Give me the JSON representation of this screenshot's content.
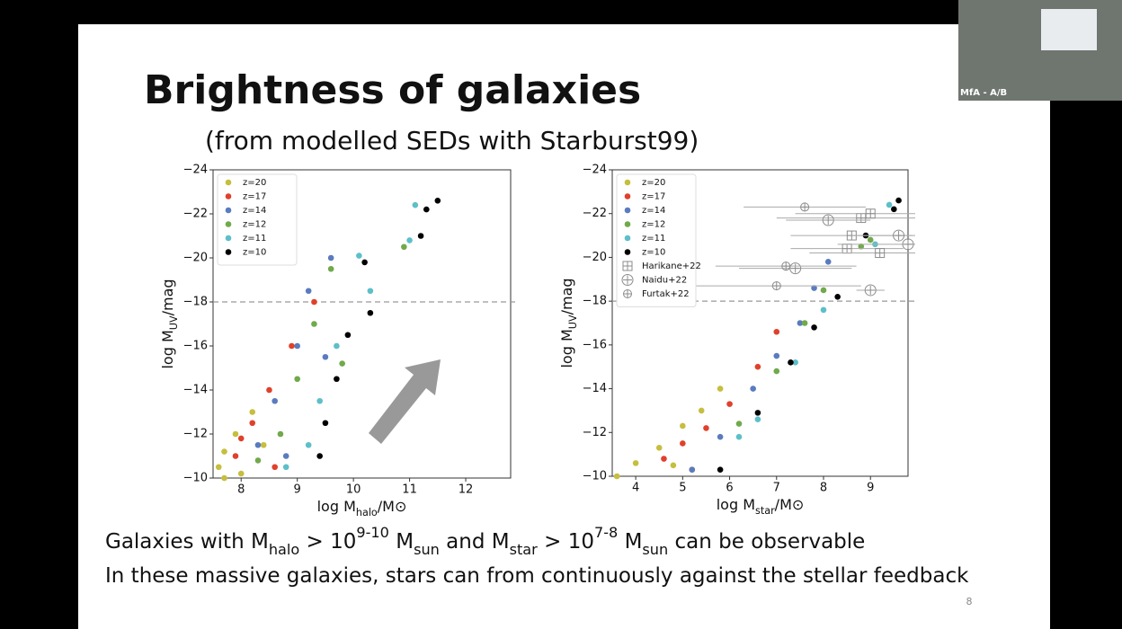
{
  "slide": {
    "title": "Brightness of galaxies",
    "subtitle": "(from modelled SEDs with Starburst99)",
    "body": [
      [
        {
          "text": "Galaxies with M"
        },
        {
          "text": "halo",
          "pos": "sub"
        },
        {
          "text": " > 10"
        },
        {
          "text": "9-10",
          "pos": "sup"
        },
        {
          "text": " M"
        },
        {
          "text": "sun",
          "pos": "sub"
        },
        {
          "text": " and M"
        },
        {
          "text": "star",
          "pos": "sub"
        },
        {
          "text": " > 10"
        },
        {
          "text": "7-8",
          "pos": "sup"
        },
        {
          "text": " M"
        },
        {
          "text": "sun",
          "pos": "sub"
        },
        {
          "text": " can be observable"
        }
      ],
      [
        {
          "text": "In these massive galaxies, stars can from continuously against the stellar feedback"
        }
      ]
    ],
    "page_number": "8"
  },
  "webcam": {
    "label": "MfA - A/B"
  },
  "chart_data": [
    {
      "type": "scatter",
      "xlabel": [
        {
          "text": "log M"
        },
        {
          "text": "halo",
          "pos": "sub"
        },
        {
          "text": "/M⊙"
        }
      ],
      "ylabel": [
        {
          "text": "log M"
        },
        {
          "text": "UV",
          "pos": "sub"
        },
        {
          "text": "/mag"
        }
      ],
      "xlim": [
        7.5,
        12.8
      ],
      "ylim": [
        -10,
        -24
      ],
      "xticks": [
        8,
        9,
        10,
        11,
        12
      ],
      "yticks": [
        {
          "value": -10,
          "label": "−10"
        },
        {
          "value": -12,
          "label": "−12"
        },
        {
          "value": -14,
          "label": "−14"
        },
        {
          "value": -16,
          "label": "−16"
        },
        {
          "value": -18,
          "label": "−18"
        },
        {
          "value": -20,
          "label": "−20"
        },
        {
          "value": -22,
          "label": "−22"
        },
        {
          "value": -24,
          "label": "−24"
        }
      ],
      "reference_line": -18,
      "legend": "upper left",
      "series": [
        {
          "name": "z=20",
          "color": "#c6be3e",
          "marker": "circle",
          "x": [
            8.2,
            7.9,
            7.7,
            7.6,
            8.0,
            8.4,
            7.7
          ],
          "values": [
            -13,
            -12,
            -11.2,
            -10.5,
            -10.2,
            -11.5,
            -10
          ]
        },
        {
          "name": "z=17",
          "color": "#e0412b",
          "marker": "circle",
          "x": [
            9.3,
            8.9,
            8.5,
            8.2,
            7.9,
            8.6,
            8.0
          ],
          "values": [
            -18,
            -16,
            -14,
            -12.5,
            -11,
            -10.5,
            -11.8
          ]
        },
        {
          "name": "z=14",
          "color": "#5a7bbf",
          "marker": "circle",
          "x": [
            9.6,
            9.2,
            9.0,
            8.6,
            8.3,
            9.5,
            8.8
          ],
          "values": [
            -20,
            -18.5,
            -16,
            -13.5,
            -11.5,
            -15.5,
            -11
          ]
        },
        {
          "name": "z=12",
          "color": "#71a94b",
          "marker": "circle",
          "x": [
            10.9,
            9.6,
            9.3,
            9.0,
            8.7,
            8.3,
            9.8
          ],
          "values": [
            -20.5,
            -19.5,
            -17,
            -14.5,
            -12,
            -10.8,
            -15.2
          ]
        },
        {
          "name": "z=11",
          "color": "#5dbfc9",
          "marker": "circle",
          "x": [
            11.1,
            11.0,
            10.1,
            10.3,
            9.7,
            9.4,
            9.2,
            8.8
          ],
          "values": [
            -22.4,
            -20.8,
            -20.1,
            -18.5,
            -16,
            -13.5,
            -11.5,
            -10.5
          ]
        },
        {
          "name": "z=10",
          "color": "#000000",
          "marker": "circle",
          "x": [
            11.5,
            11.3,
            11.2,
            10.2,
            10.3,
            9.9,
            9.7,
            9.5,
            9.4
          ],
          "values": [
            -22.6,
            -22.2,
            -21,
            -19.8,
            -17.5,
            -16.5,
            -14.5,
            -12.5,
            -11
          ]
        }
      ]
    },
    {
      "type": "scatter",
      "xlabel": [
        {
          "text": "log M"
        },
        {
          "text": "star",
          "pos": "sub"
        },
        {
          "text": "/M⊙"
        }
      ],
      "ylabel": [
        {
          "text": "log M"
        },
        {
          "text": "UV",
          "pos": "sub"
        },
        {
          "text": "/mag"
        }
      ],
      "xlim": [
        3.5,
        9.8
      ],
      "ylim": [
        -10,
        -24
      ],
      "xticks": [
        4,
        5,
        6,
        7,
        8,
        9
      ],
      "yticks": [
        {
          "value": -10,
          "label": "−10"
        },
        {
          "value": -12,
          "label": "−12"
        },
        {
          "value": -14,
          "label": "−14"
        },
        {
          "value": -16,
          "label": "−16"
        },
        {
          "value": -18,
          "label": "−18"
        },
        {
          "value": -20,
          "label": "−20"
        },
        {
          "value": -22,
          "label": "−22"
        },
        {
          "value": -24,
          "label": "−24"
        }
      ],
      "reference_line": -18,
      "legend": "upper left",
      "series": [
        {
          "name": "z=20",
          "color": "#c6be3e",
          "marker": "circle",
          "x": [
            3.6,
            4.0,
            4.5,
            5.0,
            5.4,
            5.8,
            4.8
          ],
          "values": [
            -10,
            -10.6,
            -11.3,
            -12.3,
            -13,
            -14,
            -10.5
          ]
        },
        {
          "name": "z=17",
          "color": "#e0412b",
          "marker": "circle",
          "x": [
            4.6,
            5.0,
            5.5,
            6.0,
            6.6,
            7.0,
            5.2
          ],
          "values": [
            -10.8,
            -11.5,
            -12.2,
            -13.3,
            -15,
            -16.6,
            -10.3
          ]
        },
        {
          "name": "z=14",
          "color": "#5a7bbf",
          "marker": "circle",
          "x": [
            5.2,
            5.8,
            6.5,
            7.0,
            7.5,
            7.8,
            8.1
          ],
          "values": [
            -10.3,
            -11.8,
            -14,
            -15.5,
            -17,
            -18.6,
            -19.8
          ]
        },
        {
          "name": "z=12",
          "color": "#71a94b",
          "marker": "circle",
          "x": [
            6.2,
            7.0,
            7.6,
            8.0,
            8.8,
            9.0
          ],
          "values": [
            -12.4,
            -14.8,
            -17,
            -18.5,
            -20.5,
            -20.8
          ]
        },
        {
          "name": "z=11",
          "color": "#5dbfc9",
          "marker": "circle",
          "x": [
            6.6,
            7.4,
            8.0,
            9.1,
            9.4,
            6.2
          ],
          "values": [
            -12.6,
            -15.2,
            -17.6,
            -20.6,
            -22.4,
            -11.8
          ]
        },
        {
          "name": "z=10",
          "color": "#000000",
          "marker": "circle",
          "x": [
            5.8,
            6.6,
            7.3,
            7.8,
            8.3,
            8.9,
            9.6,
            9.5
          ],
          "values": [
            -10.3,
            -12.9,
            -15.2,
            -16.8,
            -18.2,
            -21,
            -22.6,
            -22.2
          ]
        },
        {
          "name": "Harikane+22",
          "color": "#8c8c8c",
          "marker": "square",
          "x": [
            8.5,
            9.2,
            8.6,
            8.8,
            9.0
          ],
          "values": [
            -20.4,
            -20.2,
            -21.0,
            -21.8,
            -22.0
          ],
          "xerr": [
            1.2,
            1.5,
            1.3,
            1.8,
            1.6
          ]
        },
        {
          "name": "Naidu+22",
          "color": "#8c8c8c",
          "marker": "circle-open",
          "x": [
            9.6,
            7.4,
            8.1,
            9.0,
            9.8
          ],
          "values": [
            -21.0,
            -19.5,
            -21.7,
            -18.5,
            -20.6
          ],
          "xerr": [
            1.0,
            1.2,
            0.9,
            0.3,
            1.5
          ]
        },
        {
          "name": "Furtak+22",
          "color": "#8c8c8c",
          "marker": "circle-plus",
          "x": [
            7.6,
            7.2,
            7.0
          ],
          "values": [
            -22.3,
            -19.6,
            -18.7
          ],
          "xerr": [
            1.3,
            1.5,
            1.8
          ]
        }
      ]
    }
  ]
}
